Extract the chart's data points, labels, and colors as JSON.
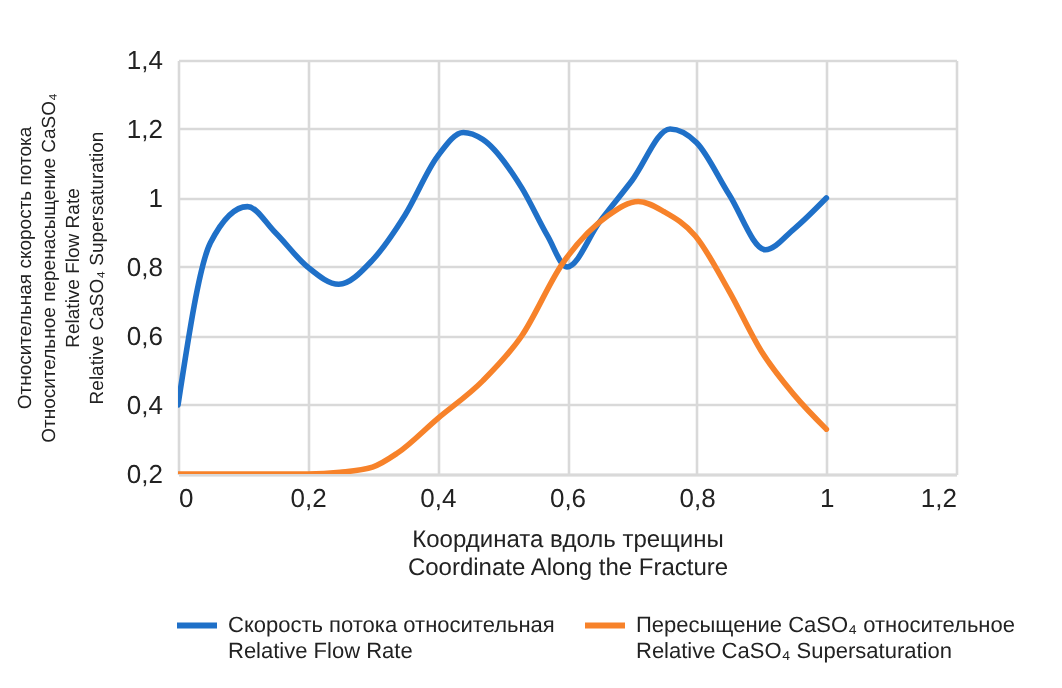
{
  "chart_data": {
    "type": "line",
    "xlabel": "Координата вдоль трещины\nCoordinate Along the Fracture",
    "ylabel": "Относительная скорость потока\nОтносительное перенасыщение  CaSO₄\nRelative Flow Rate\nRelative CaSO₄ Supersaturation",
    "series": [
      {
        "name": "Скорость потока относительная\nRelative Flow Rate",
        "color": "#1f70c8",
        "x": [
          0,
          0.05,
          0.107,
          0.15,
          0.2,
          0.248,
          0.3,
          0.35,
          0.4,
          0.44,
          0.47,
          0.53,
          0.57,
          0.6,
          0.65,
          0.7,
          0.759,
          0.8,
          0.85,
          0.906,
          0.95,
          1
        ],
        "values": [
          0.4,
          0.87,
          0.975,
          0.9,
          0.8,
          0.75,
          0.82,
          0.95,
          1.12,
          1.19,
          1.17,
          1.03,
          0.89,
          0.8,
          0.93,
          1.05,
          1.2,
          1.16,
          1.01,
          0.85,
          0.91,
          1.0
        ]
      },
      {
        "name": "Пересыщение CaSO₄ относительное\nRelative CaSO₄ Supersaturation",
        "color": "#f7822a",
        "x": [
          0,
          0.1,
          0.2,
          0.25,
          0.3,
          0.338,
          0.4,
          0.47,
          0.53,
          0.593,
          0.664,
          0.71,
          0.75,
          0.798,
          0.85,
          0.9,
          0.95,
          1
        ],
        "values": [
          0.2,
          0.2,
          0.2,
          0.205,
          0.22,
          0.26,
          0.36,
          0.47,
          0.6,
          0.81,
          0.95,
          0.99,
          0.96,
          0.89,
          0.73,
          0.555,
          0.43,
          0.33
        ]
      }
    ],
    "xlim": [
      0,
      1.2
    ],
    "xticks": [
      0,
      {
        "value": 0.2,
        "label": "0,2"
      },
      {
        "value": 0.4,
        "label": "0,4"
      },
      {
        "value": 0.6,
        "label": "0,6"
      },
      {
        "value": 0.8,
        "label": "0,8"
      },
      1,
      {
        "value": 1.2,
        "label": "1,2"
      }
    ],
    "ylim": [
      0.2,
      1.4
    ],
    "yticks": [
      {
        "value": 0.2,
        "label": "0,2"
      },
      {
        "value": 0.4,
        "label": "0,4"
      },
      {
        "value": 0.6,
        "label": "0,6"
      },
      {
        "value": 0.8,
        "label": "0,8"
      },
      1,
      {
        "value": 1.2,
        "label": "1,2"
      },
      {
        "value": 1.4,
        "label": "1,4"
      }
    ],
    "grid": true,
    "legend": "bottom",
    "marker": "none",
    "line_style": "solid"
  }
}
